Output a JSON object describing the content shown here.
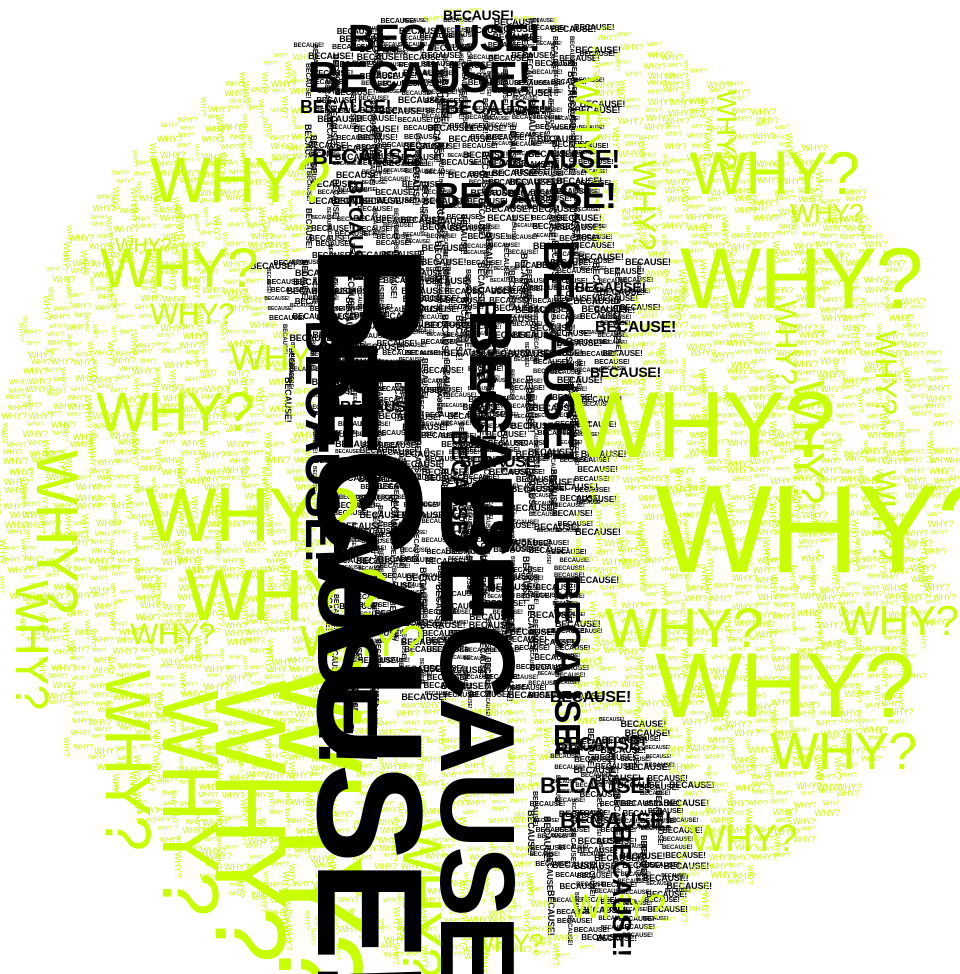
{
  "artwork": {
    "shape": "circle",
    "words": {
      "why": {
        "text": "WHY?",
        "color": "#c8ff00"
      },
      "because": {
        "text": "BECAUSE!",
        "color": "#000000"
      }
    }
  }
}
